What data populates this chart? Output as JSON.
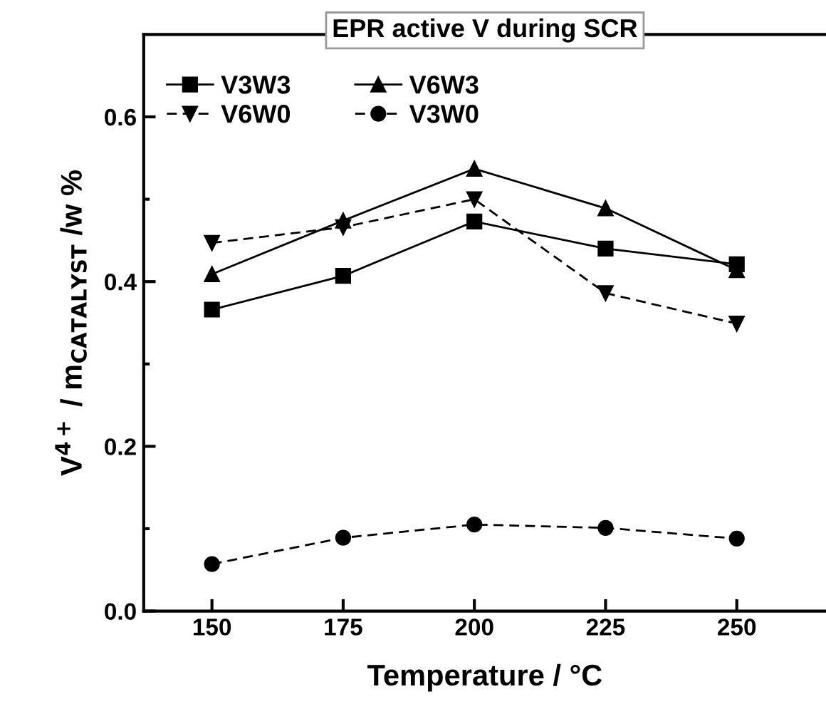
{
  "chart_data": {
    "type": "line",
    "title": "EPR active V during SCR",
    "xlabel": "Temperature / °C",
    "ylabel": "V$^{4+}$ / m$_{CATALYST}$ /w %",
    "x": [
      150,
      175,
      200,
      225,
      250
    ],
    "series": [
      {
        "name": "V3W3",
        "color": "#000000",
        "marker": "square",
        "line_style": "solid",
        "values": [
          0.366,
          0.407,
          0.473,
          0.44,
          0.421
        ]
      },
      {
        "name": "V6W3",
        "color": "#000000",
        "marker": "triangle",
        "line_style": "solid",
        "values": [
          0.409,
          0.474,
          0.537,
          0.489,
          0.414
        ]
      },
      {
        "name": "V6W0",
        "color": "#000000",
        "marker": "triangle_down",
        "line_style": "dashed",
        "values": [
          0.447,
          0.466,
          0.5,
          0.386,
          0.349
        ]
      },
      {
        "name": "V3W0",
        "color": "#000000",
        "marker": "circle",
        "line_style": "dashed",
        "values": [
          0.057,
          0.089,
          0.105,
          0.101,
          0.088
        ]
      }
    ],
    "xlim": [
      137,
      267
    ],
    "ylim": [
      0,
      0.7
    ],
    "xticks": [
      150,
      175,
      200,
      225,
      250
    ],
    "yticks": [
      {
        "value": 0,
        "label": "0.0"
      },
      {
        "value": 0.1,
        "label": null
      },
      {
        "value": 0.2,
        "label": "0.2"
      },
      {
        "value": 0.3,
        "label": null
      },
      {
        "value": 0.4,
        "label": "0.4"
      },
      {
        "value": 0.5,
        "label": null
      },
      {
        "value": 0.6,
        "label": "0.6"
      }
    ],
    "grid": false,
    "legend": "top left"
  }
}
